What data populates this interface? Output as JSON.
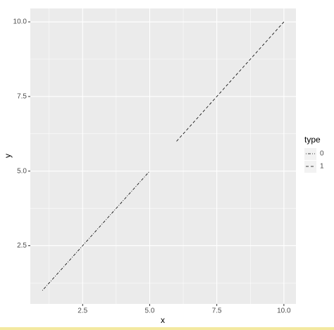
{
  "chart_data": {
    "type": "line",
    "x_label": "x",
    "y_label": "y",
    "x": [
      1,
      2,
      3,
      4,
      5,
      6,
      7,
      8,
      9,
      10
    ],
    "series": [
      {
        "name": "0",
        "color": "#000000",
        "linetype": "dotdash",
        "values": [
          1,
          2,
          3,
          4,
          5,
          null,
          null,
          null,
          null,
          null
        ]
      },
      {
        "name": "1",
        "color": "#000000",
        "linetype": "dashed",
        "values": [
          null,
          null,
          null,
          null,
          null,
          6,
          7,
          8,
          9,
          10
        ]
      }
    ],
    "legend_title": "type",
    "xlim": [
      0.55,
      10.45
    ],
    "ylim": [
      0.55,
      10.45
    ],
    "xticks": [
      2.5,
      {
        "value": 5,
        "label": "5.0"
      },
      7.5,
      {
        "value": 10,
        "label": "10.0"
      }
    ],
    "yticks": [
      2.5,
      {
        "value": 5,
        "label": "5.0"
      },
      7.5,
      {
        "value": 10,
        "label": "10.0"
      }
    ],
    "grid": true,
    "legend": "right"
  }
}
